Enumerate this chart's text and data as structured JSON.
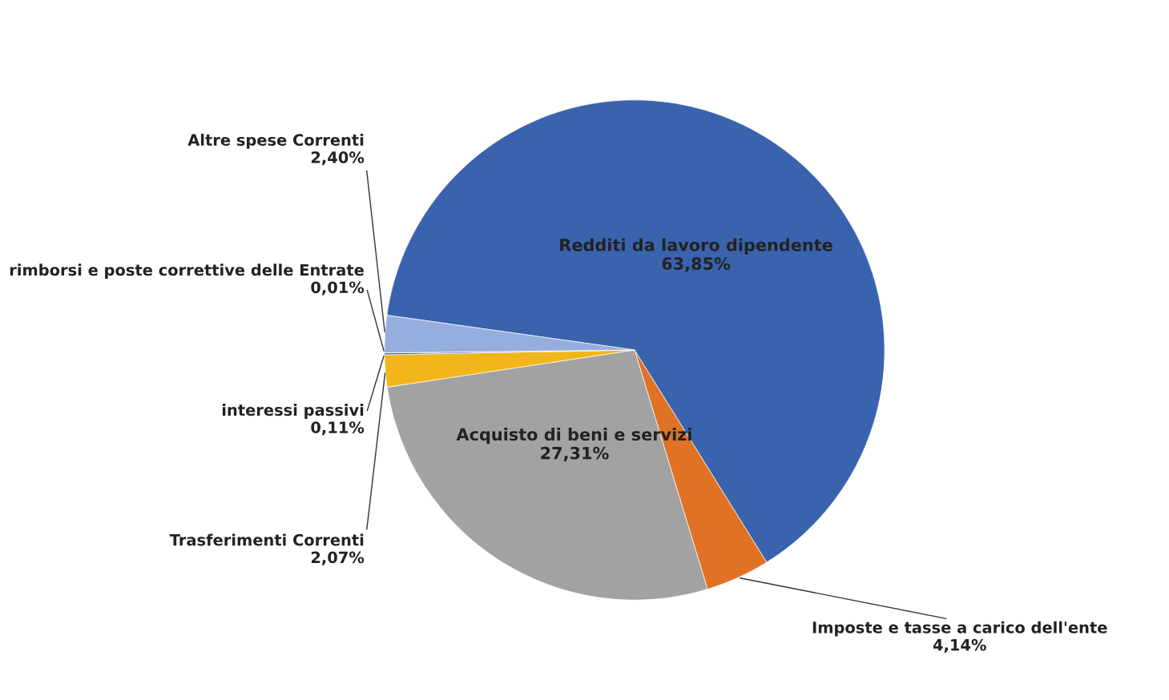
{
  "chart_data": {
    "type": "pie",
    "categories": [
      "Redditi da lavoro dipendente",
      "Imposte e tasse a carico dell'ente",
      "Acquisto di beni e servizi",
      "Trasferimenti Correnti",
      "interessi passivi",
      "rimborsi e poste correttive delle Entrate",
      "Altre spese Correnti"
    ],
    "values": [
      63.85,
      4.14,
      27.31,
      2.07,
      0.11,
      0.01,
      2.4
    ],
    "value_labels": [
      "63,85%",
      "4,14%",
      "27,31%",
      "2,07%",
      "0,11%",
      "0,01%",
      "2,40%"
    ],
    "colors": [
      "#3a63ad",
      "#e07226",
      "#a2a2a2",
      "#f2b61c",
      "#2f5597",
      "#4e9a4a",
      "#96aede"
    ],
    "legend": false
  }
}
